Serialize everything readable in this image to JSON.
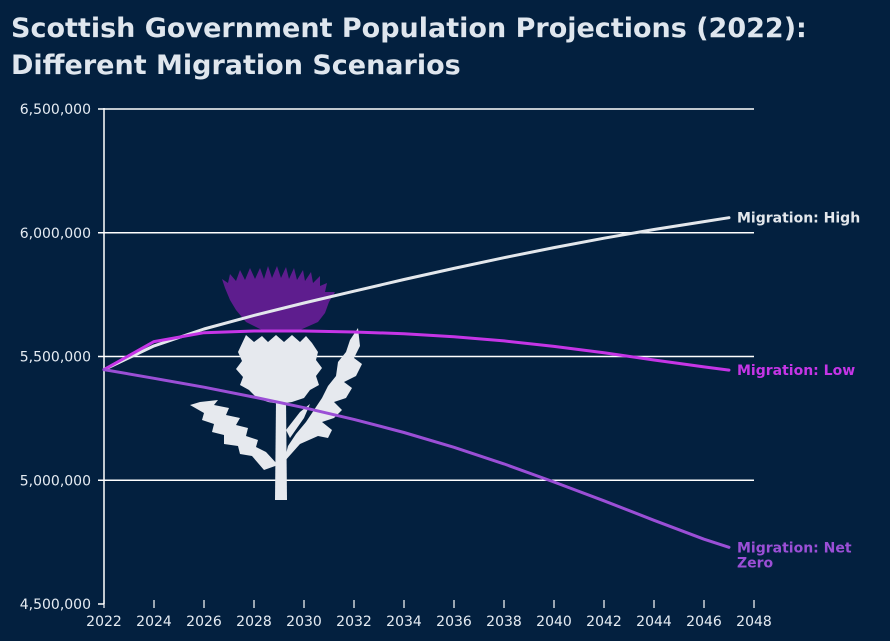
{
  "title": "Scottish Government Population Projections (2022): Different Migration Scenarios",
  "chart_data": {
    "type": "line",
    "title": "Scottish Government Population Projections (2022): Different Migration Scenarios",
    "xlabel": "",
    "ylabel": "",
    "xlim": [
      2022,
      2048
    ],
    "ylim": [
      4500000,
      6500000
    ],
    "xticks": [
      "2022",
      "2024",
      "2026",
      "2028",
      "2030",
      "2032",
      "2034",
      "2036",
      "2038",
      "2040",
      "2042",
      "2044",
      "2046",
      "2048"
    ],
    "yticks": [
      "4,500,000",
      "5,000,000",
      "5,500,000",
      "6,000,000",
      "6,500,000"
    ],
    "grid": "horizontal",
    "legend": "labels at line ends",
    "colors": {
      "background": "#03203f",
      "grid": "#ffffff",
      "high": "#e3e7ec",
      "low": "#c535e6",
      "net_zero": "#9b4fd6",
      "thistle_flower": "#5e1d8e",
      "thistle_body": "#e6e9ee"
    },
    "series": [
      {
        "name": "Migration: High",
        "label_lines": [
          "Migration: High"
        ],
        "color": "#e3e7ec",
        "x": [
          2022,
          2024,
          2026,
          2028,
          2030,
          2032,
          2034,
          2036,
          2038,
          2040,
          2042,
          2044,
          2046,
          2047
        ],
        "values": [
          5447000,
          5543000,
          5611000,
          5666000,
          5716000,
          5764000,
          5811000,
          5856000,
          5899000,
          5940000,
          5978000,
          6013000,
          6045000,
          6061000
        ]
      },
      {
        "name": "Migration: Low",
        "label_lines": [
          "Migration: Low"
        ],
        "color": "#c535e6",
        "x": [
          2022,
          2024,
          2026,
          2028,
          2030,
          2032,
          2034,
          2036,
          2038,
          2040,
          2042,
          2044,
          2046,
          2047
        ],
        "values": [
          5447000,
          5560000,
          5596000,
          5603000,
          5603000,
          5599000,
          5592000,
          5580000,
          5563000,
          5541000,
          5515000,
          5486000,
          5458000,
          5445000
        ]
      },
      {
        "name": "Migration: Net Zero",
        "label_lines": [
          "Migration: Net",
          "Zero"
        ],
        "color": "#9b4fd6",
        "x": [
          2022,
          2024,
          2026,
          2028,
          2030,
          2032,
          2034,
          2036,
          2038,
          2040,
          2042,
          2044,
          2046,
          2047
        ],
        "values": [
          5447000,
          5412000,
          5376000,
          5336000,
          5293000,
          5246000,
          5193000,
          5133000,
          5066000,
          4993000,
          4917000,
          4838000,
          4762000,
          4729000
        ]
      }
    ]
  }
}
